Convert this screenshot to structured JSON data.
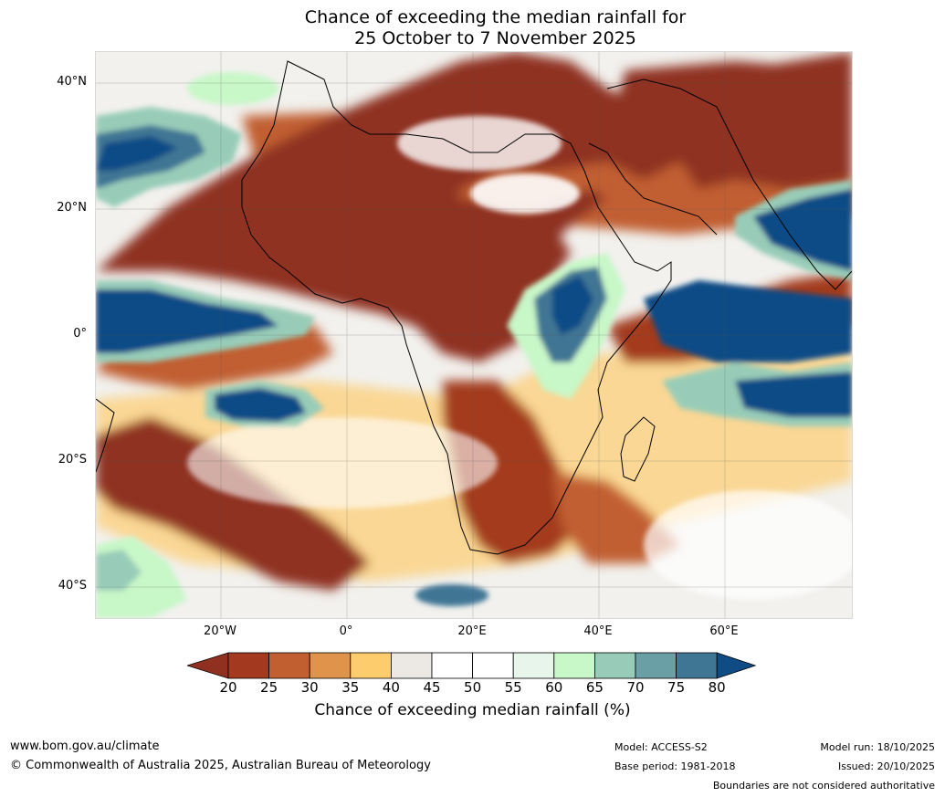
{
  "title": {
    "line1": "Chance of exceeding the median rainfall for",
    "line2": "25 October to 7 November 2025"
  },
  "map": {
    "lat_labels": [
      "40°N",
      "20°N",
      "0°",
      "20°S",
      "40°S"
    ],
    "lon_labels": [
      "20°W",
      "0°",
      "20°E",
      "40°E",
      "60°E"
    ]
  },
  "colorbar": {
    "ticks": [
      "20",
      "25",
      "30",
      "35",
      "40",
      "45",
      "50",
      "55",
      "60",
      "65",
      "70",
      "75",
      "80"
    ],
    "colors": [
      "#8f3020",
      "#a33a1f",
      "#c15f30",
      "#e0934b",
      "#fdcc6d",
      "#ece9e4",
      "#ffffff",
      "#ffffff",
      "#e8f5ea",
      "#c8f7c8",
      "#98ccb8",
      "#6a9fa6",
      "#3f7694",
      "#0f4c86"
    ],
    "label": "Chance of exceeding median rainfall (%)"
  },
  "footer": {
    "website": "www.bom.gov.au/climate",
    "copyright": "© Commonwealth of Australia 2025, Australian Bureau of Meteorology",
    "model": "Model: ACCESS-S2",
    "base_period": "Base period: 1981-2018",
    "model_run": "Model run: 18/10/2025",
    "issued": "Issued: 20/10/2025",
    "disclaimer": "Boundaries are not considered authoritative"
  }
}
